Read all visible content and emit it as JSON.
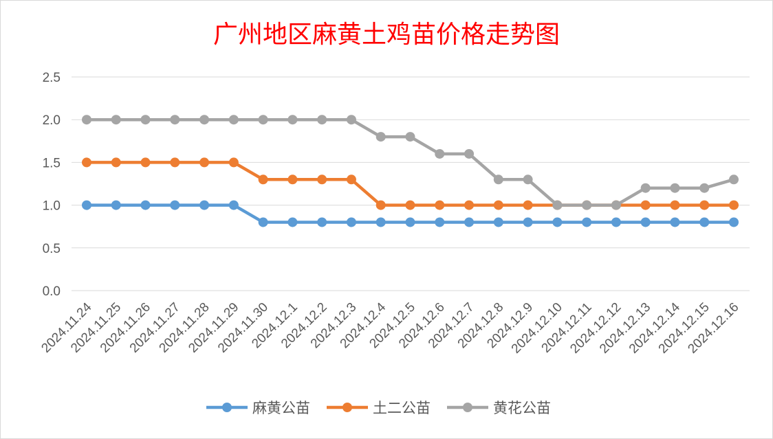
{
  "chart_data": {
    "type": "line",
    "title": "广州地区麻黄土鸡苗价格走势图",
    "xlabel": "",
    "ylabel": "",
    "ylim": [
      0,
      2.5
    ],
    "yticks": [
      "0.0",
      "0.5",
      "1.0",
      "1.5",
      "2.0",
      "2.5"
    ],
    "grid": true,
    "legend_position": "bottom",
    "categories": [
      "2024.11.24",
      "2024.11.25",
      "2024.11.26",
      "2024.11.27",
      "2024.11.28",
      "2024.11.29",
      "2024.11.30",
      "2024.12.1",
      "2024.12.2",
      "2024.12.3",
      "2024.12.4",
      "2024.12.5",
      "2024.12.6",
      "2024.12.7",
      "2024.12.8",
      "2024.12.9",
      "2024.12.10",
      "2024.12.11",
      "2024.12.12",
      "2024.12.13",
      "2024.12.14",
      "2024.12.15",
      "2024.12.16"
    ],
    "series": [
      {
        "name": "麻黄公苗",
        "color": "#5b9bd5",
        "values": [
          1.0,
          1.0,
          1.0,
          1.0,
          1.0,
          1.0,
          0.8,
          0.8,
          0.8,
          0.8,
          0.8,
          0.8,
          0.8,
          0.8,
          0.8,
          0.8,
          0.8,
          0.8,
          0.8,
          0.8,
          0.8,
          0.8,
          0.8
        ]
      },
      {
        "name": "土二公苗",
        "color": "#ed7d31",
        "values": [
          1.5,
          1.5,
          1.5,
          1.5,
          1.5,
          1.5,
          1.3,
          1.3,
          1.3,
          1.3,
          1.0,
          1.0,
          1.0,
          1.0,
          1.0,
          1.0,
          1.0,
          1.0,
          1.0,
          1.0,
          1.0,
          1.0,
          1.0
        ]
      },
      {
        "name": "黄花公苗",
        "color": "#a5a5a5",
        "values": [
          2.0,
          2.0,
          2.0,
          2.0,
          2.0,
          2.0,
          2.0,
          2.0,
          2.0,
          2.0,
          1.8,
          1.8,
          1.6,
          1.6,
          1.3,
          1.3,
          1.0,
          1.0,
          1.0,
          1.2,
          1.2,
          1.2,
          1.3
        ]
      }
    ]
  }
}
